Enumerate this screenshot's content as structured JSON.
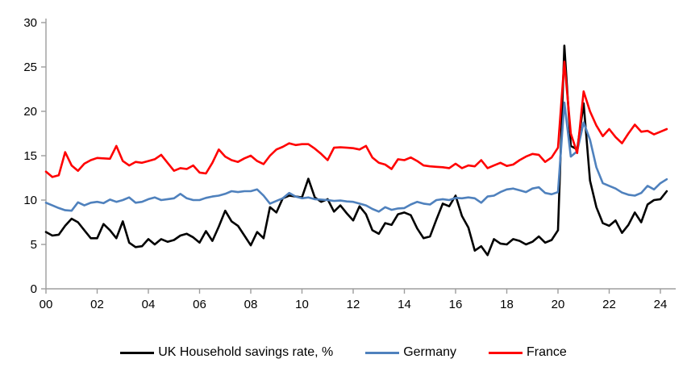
{
  "chart_data": {
    "type": "line",
    "title": "",
    "xlabel": "",
    "ylabel": "",
    "x_start": 2000,
    "x_step": 0.25,
    "x_tick_years": [
      2000,
      2002,
      2004,
      2006,
      2008,
      2010,
      2012,
      2014,
      2016,
      2018,
      2020,
      2022,
      2024
    ],
    "x_tick_labels": [
      "00",
      "02",
      "04",
      "06",
      "08",
      "10",
      "12",
      "14",
      "16",
      "18",
      "20",
      "22",
      "24"
    ],
    "y_ticks": [
      0,
      5,
      10,
      15,
      20,
      25,
      30
    ],
    "ylim": [
      0,
      30
    ],
    "xlim": [
      2000,
      2024.6
    ],
    "grid": false,
    "legend_position": "bottom",
    "axis_color": "#9d9d9d",
    "series": [
      {
        "name": "UK Household savings rate, %",
        "color": "#000000",
        "values": [
          6.4,
          6.0,
          6.1,
          7.1,
          7.9,
          7.5,
          6.6,
          5.7,
          5.7,
          7.3,
          6.6,
          5.7,
          7.6,
          5.2,
          4.7,
          4.8,
          5.6,
          5.0,
          5.6,
          5.3,
          5.5,
          6.0,
          6.2,
          5.8,
          5.2,
          6.5,
          5.4,
          7.0,
          8.8,
          7.6,
          7.1,
          6.0,
          4.9,
          6.4,
          5.7,
          9.2,
          8.6,
          10.2,
          10.5,
          10.4,
          10.3,
          12.4,
          10.3,
          9.8,
          10.1,
          8.7,
          9.4,
          8.5,
          7.7,
          9.3,
          8.4,
          6.6,
          6.2,
          7.4,
          7.2,
          8.4,
          8.6,
          8.3,
          6.8,
          5.7,
          5.9,
          7.8,
          9.6,
          9.3,
          10.5,
          8.2,
          6.9,
          4.3,
          4.8,
          3.8,
          5.6,
          5.1,
          5.0,
          5.6,
          5.4,
          5.0,
          5.3,
          5.9,
          5.2,
          5.5,
          6.6,
          27.4,
          16.1,
          15.7,
          20.9,
          12.2,
          9.2,
          7.4,
          7.1,
          7.7,
          6.3,
          7.2,
          8.6,
          7.5,
          9.5,
          10.0,
          10.1,
          11.0
        ]
      },
      {
        "name": "Germany",
        "color": "#4F81BD",
        "values": [
          9.7,
          9.4,
          9.1,
          8.85,
          8.8,
          9.75,
          9.4,
          9.7,
          9.8,
          9.65,
          10.05,
          9.8,
          10.0,
          10.3,
          9.7,
          9.8,
          10.1,
          10.3,
          10.0,
          10.1,
          10.2,
          10.7,
          10.2,
          10.0,
          10.0,
          10.25,
          10.4,
          10.5,
          10.7,
          11.0,
          10.9,
          11.0,
          11.0,
          11.2,
          10.5,
          9.6,
          9.9,
          10.2,
          10.8,
          10.4,
          10.2,
          10.3,
          10.1,
          10.05,
          10.0,
          9.9,
          9.95,
          9.85,
          9.8,
          9.6,
          9.4,
          9.0,
          8.7,
          9.2,
          8.9,
          9.05,
          9.1,
          9.5,
          9.8,
          9.6,
          9.5,
          10.0,
          10.1,
          10.0,
          10.25,
          10.2,
          10.3,
          10.2,
          9.7,
          10.4,
          10.5,
          10.9,
          11.2,
          11.3,
          11.1,
          10.9,
          11.3,
          11.45,
          10.8,
          10.65,
          10.9,
          21.0,
          14.9,
          15.5,
          18.75,
          16.8,
          13.7,
          11.9,
          11.6,
          11.3,
          10.85,
          10.6,
          10.5,
          10.8,
          11.6,
          11.2,
          11.9,
          12.35
        ]
      },
      {
        "name": "France",
        "color": "#FF0000",
        "values": [
          13.2,
          12.6,
          12.8,
          15.4,
          13.9,
          13.3,
          14.1,
          14.5,
          14.75,
          14.7,
          14.65,
          16.1,
          14.4,
          13.9,
          14.3,
          14.2,
          14.4,
          14.6,
          15.1,
          14.2,
          13.3,
          13.6,
          13.5,
          13.9,
          13.1,
          13.0,
          14.2,
          15.7,
          14.9,
          14.5,
          14.3,
          14.7,
          15.0,
          14.4,
          14.05,
          15.0,
          15.7,
          16.0,
          16.4,
          16.2,
          16.3,
          16.3,
          15.8,
          15.2,
          14.5,
          15.9,
          15.95,
          15.9,
          15.85,
          15.7,
          16.1,
          14.8,
          14.2,
          14.0,
          13.5,
          14.6,
          14.5,
          14.8,
          14.4,
          13.9,
          13.8,
          13.75,
          13.7,
          13.6,
          14.1,
          13.6,
          13.9,
          13.8,
          14.5,
          13.6,
          13.9,
          14.2,
          13.85,
          14.0,
          14.5,
          14.9,
          15.2,
          15.1,
          14.3,
          14.8,
          15.9,
          25.6,
          17.5,
          15.3,
          22.25,
          20.0,
          18.4,
          17.2,
          18.0,
          17.1,
          16.4,
          17.5,
          18.5,
          17.7,
          17.8,
          17.4,
          17.7,
          18.0
        ]
      }
    ]
  },
  "legend": {
    "items": [
      {
        "label": "UK Household savings rate, %"
      },
      {
        "label": "Germany"
      },
      {
        "label": "France"
      }
    ]
  }
}
